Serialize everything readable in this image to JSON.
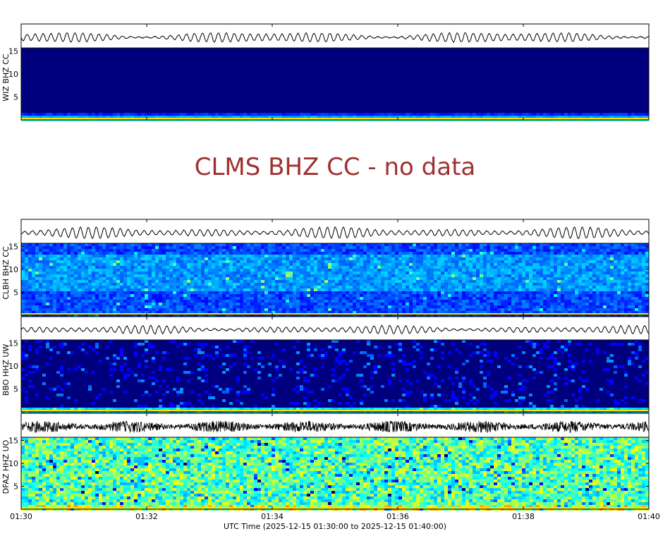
{
  "chart_data": {
    "type": "heatmap",
    "description_kind": "spectrogram",
    "x_axis": {
      "label": "UTC Time (2025-12-15 01:30:00 to 2025-12-15 01:40:00)",
      "tick_labels": [
        "01:30",
        "01:32",
        "01:34",
        "01:36",
        "01:38",
        "01:40"
      ],
      "range_minutes": [
        0,
        10
      ]
    },
    "y_axis": {
      "range": [
        0,
        15
      ],
      "tick_labels": [
        "5",
        "10",
        "15"
      ]
    },
    "channels": [
      {
        "label": "WIZ BHZ CC",
        "has_data": true,
        "style": "quiet"
      },
      {
        "label": "CLMS BHZ CC",
        "has_data": false,
        "message": "CLMS BHZ CC - no data"
      },
      {
        "label": "CLBH BHZ CC",
        "has_data": true,
        "style": "moderate"
      },
      {
        "label": "BBO HHZ UW",
        "has_data": true,
        "style": "quiet-vertical"
      },
      {
        "label": "DFAZ HHZ UO",
        "has_data": true,
        "style": "noisy"
      }
    ],
    "colors": {
      "background": "#00007f",
      "nodata_text": "#a03030"
    }
  }
}
